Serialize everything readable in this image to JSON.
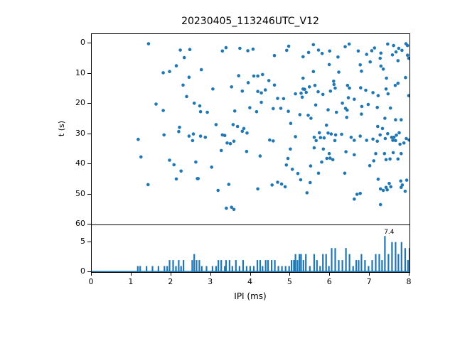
{
  "figure": {
    "title": "20230405_113246UTC_V12",
    "background": "#ffffff",
    "accent_color": "#1f77b4"
  },
  "chart_data": [
    {
      "type": "scatter",
      "ylabel": "t (s)",
      "xlim": [
        0,
        8
      ],
      "ylim": [
        -3.1,
        60
      ],
      "y_inverted": true,
      "yticks": [
        0,
        10,
        20,
        30,
        40,
        50,
        60
      ],
      "marker_color": "#1f77b4",
      "points": [
        [
          1.43,
          0.1
        ],
        [
          2.23,
          2.2
        ],
        [
          2.47,
          2.0
        ],
        [
          2.33,
          4.7
        ],
        [
          2.13,
          7.4
        ],
        [
          1.8,
          9.7
        ],
        [
          1.96,
          9.3
        ],
        [
          2.45,
          11.2
        ],
        [
          2.3,
          13.8
        ],
        [
          2.39,
          17.6
        ],
        [
          2.58,
          19.8
        ],
        [
          1.62,
          20.1
        ],
        [
          1.8,
          22.2
        ],
        [
          2.21,
          27.8
        ],
        [
          3.38,
          1.4
        ],
        [
          3.29,
          2.5
        ],
        [
          3.73,
          1.6
        ],
        [
          3.93,
          2.4
        ],
        [
          4.06,
          1.9
        ],
        [
          4.6,
          4.0
        ],
        [
          4.91,
          2.3
        ],
        [
          4.96,
          0.9
        ],
        [
          5.32,
          4.4
        ],
        [
          2.76,
          8.7
        ],
        [
          3.7,
          10.7
        ],
        [
          4.08,
          10.8
        ],
        [
          4.18,
          10.8
        ],
        [
          4.3,
          10.3
        ],
        [
          4.46,
          12.3
        ],
        [
          4.6,
          13.8
        ],
        [
          5.32,
          11.5
        ],
        [
          3.52,
          14.4
        ],
        [
          3.05,
          15.1
        ],
        [
          3.79,
          15.8
        ],
        [
          3.94,
          13.0
        ],
        [
          4.18,
          15.9
        ],
        [
          4.27,
          16.4
        ],
        [
          4.37,
          15.4
        ],
        [
          5.27,
          16.5
        ],
        [
          5.32,
          15.1
        ],
        [
          5.13,
          16.7
        ],
        [
          5.3,
          17.8
        ],
        [
          4.68,
          18.2
        ],
        [
          4.83,
          18.3
        ],
        [
          4.27,
          19.5
        ],
        [
          2.72,
          20.7
        ],
        [
          2.74,
          22.6
        ],
        [
          2.91,
          22.8
        ],
        [
          3.98,
          21.3
        ],
        [
          4.15,
          22.6
        ],
        [
          4.57,
          21.6
        ],
        [
          4.76,
          21.5
        ],
        [
          4.95,
          22.5
        ],
        [
          5.24,
          23.6
        ],
        [
          3.6,
          22.4
        ],
        [
          3.13,
          26.9
        ],
        [
          3.56,
          26.9
        ],
        [
          3.67,
          27.5
        ],
        [
          3.83,
          28.2
        ],
        [
          5.01,
          26.5
        ],
        [
          5.58,
          0.4
        ],
        [
          5.71,
          2.2
        ],
        [
          5.46,
          3.0
        ],
        [
          5.8,
          3.3
        ],
        [
          5.99,
          2.5
        ],
        [
          6.2,
          4.5
        ],
        [
          6.38,
          1.1
        ],
        [
          6.48,
          0.2
        ],
        [
          6.71,
          2.5
        ],
        [
          6.92,
          3.6
        ],
        [
          7.05,
          2.4
        ],
        [
          7.12,
          1.5
        ],
        [
          7.26,
          4.9
        ],
        [
          7.28,
          3.2
        ],
        [
          7.45,
          0.2
        ],
        [
          7.6,
          0.7
        ],
        [
          7.66,
          2.8
        ],
        [
          7.57,
          3.8
        ],
        [
          7.73,
          1.6
        ],
        [
          7.81,
          2.3
        ],
        [
          7.91,
          0.1
        ],
        [
          7.95,
          0.7
        ],
        [
          7.95,
          3.9
        ],
        [
          7.98,
          4.9
        ],
        [
          7.71,
          5.7
        ],
        [
          5.98,
          7.0
        ],
        [
          5.58,
          9.3
        ],
        [
          6.22,
          9.5
        ],
        [
          6.76,
          7.1
        ],
        [
          6.79,
          9.2
        ],
        [
          7.01,
          6.1
        ],
        [
          7.28,
          7.5
        ],
        [
          7.34,
          8.5
        ],
        [
          7.42,
          11.5
        ],
        [
          7.9,
          11.3
        ],
        [
          6.09,
          12.5
        ],
        [
          6.1,
          13.6
        ],
        [
          5.62,
          13.9
        ],
        [
          5.48,
          14.4
        ],
        [
          5.36,
          15.2
        ],
        [
          5.4,
          16.2
        ],
        [
          5.7,
          16.0
        ],
        [
          5.82,
          16.9
        ],
        [
          6.01,
          15.8
        ],
        [
          6.13,
          14.8
        ],
        [
          6.44,
          13.9
        ],
        [
          6.49,
          14.8
        ],
        [
          6.77,
          14.7
        ],
        [
          6.9,
          15.5
        ],
        [
          7.08,
          16.3
        ],
        [
          7.21,
          17.3
        ],
        [
          7.41,
          15.1
        ],
        [
          7.46,
          16.7
        ],
        [
          7.64,
          13.9
        ],
        [
          7.71,
          13.2
        ],
        [
          7.98,
          17.3
        ],
        [
          6.46,
          18.0
        ],
        [
          6.61,
          18.5
        ],
        [
          6.31,
          19.8
        ],
        [
          5.64,
          20.4
        ],
        [
          5.95,
          22.0
        ],
        [
          6.16,
          22.8
        ],
        [
          6.39,
          21.5
        ],
        [
          6.43,
          22.1
        ],
        [
          6.8,
          20.9
        ],
        [
          6.96,
          20.2
        ],
        [
          7.19,
          21.2
        ],
        [
          7.52,
          21.4
        ],
        [
          5.45,
          23.8
        ],
        [
          5.52,
          24.8
        ],
        [
          6.79,
          23.4
        ],
        [
          7.38,
          24.8
        ],
        [
          7.65,
          25.3
        ],
        [
          7.79,
          25.3
        ],
        [
          6.42,
          24.5
        ],
        [
          5.91,
          27.1
        ],
        [
          7.2,
          27.5
        ],
        [
          7.32,
          28.2
        ],
        [
          1.17,
          31.8
        ],
        [
          1.82,
          30.3
        ],
        [
          2.19,
          29.2
        ],
        [
          2.45,
          30.7
        ],
        [
          2.56,
          30.0
        ],
        [
          2.54,
          32.2
        ],
        [
          1.24,
          37.6
        ],
        [
          1.96,
          38.7
        ],
        [
          2.07,
          40.2
        ],
        [
          2.25,
          42.3
        ],
        [
          2.13,
          44.9
        ],
        [
          2.62,
          39.3
        ],
        [
          2.66,
          44.8
        ],
        [
          1.42,
          46.8
        ],
        [
          2.74,
          30.7
        ],
        [
          2.86,
          31.1
        ],
        [
          3.29,
          30.3
        ],
        [
          3.35,
          30.5
        ],
        [
          3.41,
          33.0
        ],
        [
          3.49,
          33.2
        ],
        [
          3.58,
          32.4
        ],
        [
          3.79,
          29.1
        ],
        [
          3.91,
          29.7
        ],
        [
          4.48,
          32.0
        ],
        [
          4.57,
          32.3
        ],
        [
          5.13,
          30.9
        ],
        [
          3.26,
          35.5
        ],
        [
          3.9,
          35.8
        ],
        [
          4.24,
          37.3
        ],
        [
          5.0,
          35.0
        ],
        [
          4.94,
          38.1
        ],
        [
          3.02,
          41.0
        ],
        [
          4.9,
          40.3
        ],
        [
          5.05,
          41.7
        ],
        [
          5.19,
          43.1
        ],
        [
          5.26,
          45.2
        ],
        [
          2.68,
          44.8
        ],
        [
          3.45,
          46.7
        ],
        [
          4.54,
          46.9
        ],
        [
          4.68,
          46.0
        ],
        [
          4.78,
          46.6
        ],
        [
          4.87,
          47.5
        ],
        [
          3.18,
          48.7
        ],
        [
          4.18,
          48.2
        ],
        [
          3.39,
          54.6
        ],
        [
          3.52,
          54.3
        ],
        [
          3.58,
          55.0
        ],
        [
          5.73,
          29.6
        ],
        [
          5.6,
          31.1
        ],
        [
          5.65,
          32.2
        ],
        [
          5.76,
          31.2
        ],
        [
          5.85,
          31.3
        ],
        [
          5.95,
          29.7
        ],
        [
          6.03,
          30.0
        ],
        [
          6.14,
          30.3
        ],
        [
          6.29,
          30.1
        ],
        [
          6.12,
          32.2
        ],
        [
          6.53,
          31.1
        ],
        [
          6.61,
          32.1
        ],
        [
          6.76,
          30.7
        ],
        [
          6.92,
          32.1
        ],
        [
          7.08,
          31.7
        ],
        [
          7.19,
          32.4
        ],
        [
          7.26,
          30.3
        ],
        [
          7.39,
          31.5
        ],
        [
          7.45,
          29.9
        ],
        [
          7.55,
          31.1
        ],
        [
          7.61,
          31.1
        ],
        [
          7.67,
          30.4
        ],
        [
          7.58,
          32.1
        ],
        [
          7.65,
          32.2
        ],
        [
          7.74,
          29.6
        ],
        [
          7.76,
          33.4
        ],
        [
          7.86,
          33.0
        ],
        [
          7.92,
          31.5
        ],
        [
          7.99,
          32.0
        ],
        [
          5.6,
          34.6
        ],
        [
          5.83,
          35.0
        ],
        [
          5.98,
          36.5
        ],
        [
          5.92,
          38.1
        ],
        [
          6.0,
          38.0
        ],
        [
          6.07,
          38.5
        ],
        [
          6.4,
          35.9
        ],
        [
          6.61,
          36.9
        ],
        [
          5.79,
          39.3
        ],
        [
          5.51,
          40.6
        ],
        [
          5.71,
          43.0
        ],
        [
          6.37,
          43.0
        ],
        [
          7.0,
          40.5
        ],
        [
          7.1,
          38.9
        ],
        [
          7.15,
          36.5
        ],
        [
          7.37,
          36.5
        ],
        [
          7.41,
          38.5
        ],
        [
          7.51,
          38.3
        ],
        [
          7.59,
          36.2
        ],
        [
          7.71,
          38.3
        ],
        [
          7.79,
          36.5
        ],
        [
          5.5,
          46.1
        ],
        [
          5.42,
          49.5
        ],
        [
          7.21,
          45.0
        ],
        [
          7.49,
          46.4
        ],
        [
          7.78,
          45.6
        ],
        [
          7.82,
          46.9
        ],
        [
          7.93,
          45.3
        ],
        [
          7.89,
          49.0
        ],
        [
          7.27,
          48.2
        ],
        [
          7.34,
          48.7
        ],
        [
          7.41,
          47.7
        ],
        [
          7.44,
          48.5
        ],
        [
          7.53,
          47.5
        ],
        [
          7.79,
          47.7
        ],
        [
          6.68,
          50.0
        ],
        [
          6.76,
          49.7
        ],
        [
          6.61,
          51.6
        ],
        [
          7.27,
          53.4
        ]
      ]
    },
    {
      "type": "bar",
      "xlabel": "IPI (ms)",
      "xlim": [
        0,
        8
      ],
      "ylim": [
        0,
        7.8
      ],
      "xticks": [
        0,
        1,
        2,
        3,
        4,
        5,
        6,
        7,
        8
      ],
      "yticks": [
        0,
        5
      ],
      "line_color": "#1f77b4",
      "annotation": {
        "text": "7.4",
        "x": 7.36,
        "y": 6.6
      },
      "x": [
        1.16,
        1.22,
        1.38,
        1.53,
        1.68,
        1.83,
        1.9,
        1.96,
        2.05,
        2.12,
        2.19,
        2.25,
        2.31,
        2.53,
        2.58,
        2.64,
        2.71,
        2.77,
        2.89,
        3.04,
        3.13,
        3.19,
        3.26,
        3.35,
        3.38,
        3.47,
        3.54,
        3.63,
        3.72,
        3.81,
        3.9,
        3.99,
        4.08,
        4.17,
        4.24,
        4.3,
        4.38,
        4.44,
        4.53,
        4.61,
        4.7,
        4.79,
        4.88,
        4.97,
        5.03,
        5.09,
        5.13,
        5.18,
        5.23,
        5.27,
        5.33,
        5.39,
        5.49,
        5.6,
        5.67,
        5.75,
        5.82,
        5.9,
        5.97,
        6.04,
        6.13,
        6.22,
        6.31,
        6.4,
        6.49,
        6.58,
        6.66,
        6.72,
        6.79,
        6.88,
        6.97,
        7.06,
        7.15,
        7.24,
        7.31,
        7.38,
        7.47,
        7.56,
        7.65,
        7.72,
        7.8,
        7.89,
        7.96,
        8.0
      ],
      "counts": [
        1,
        1,
        1,
        1,
        1,
        1,
        1,
        2,
        2,
        1,
        2,
        1,
        2,
        2,
        3,
        2,
        2,
        1,
        1,
        1,
        1,
        2,
        2,
        1,
        2,
        2,
        1,
        2,
        1,
        2,
        1,
        1,
        1,
        2,
        2,
        1,
        2,
        2,
        2,
        2,
        1,
        1,
        1,
        1,
        2,
        2,
        3,
        2,
        3,
        3,
        2,
        3,
        1,
        3,
        2,
        1,
        3,
        3,
        1,
        4,
        4,
        2,
        2,
        4,
        3,
        1,
        2,
        2,
        3,
        2,
        1,
        2,
        3,
        3,
        2,
        6,
        3,
        5,
        5,
        3,
        5,
        4,
        2,
        4
      ]
    }
  ]
}
